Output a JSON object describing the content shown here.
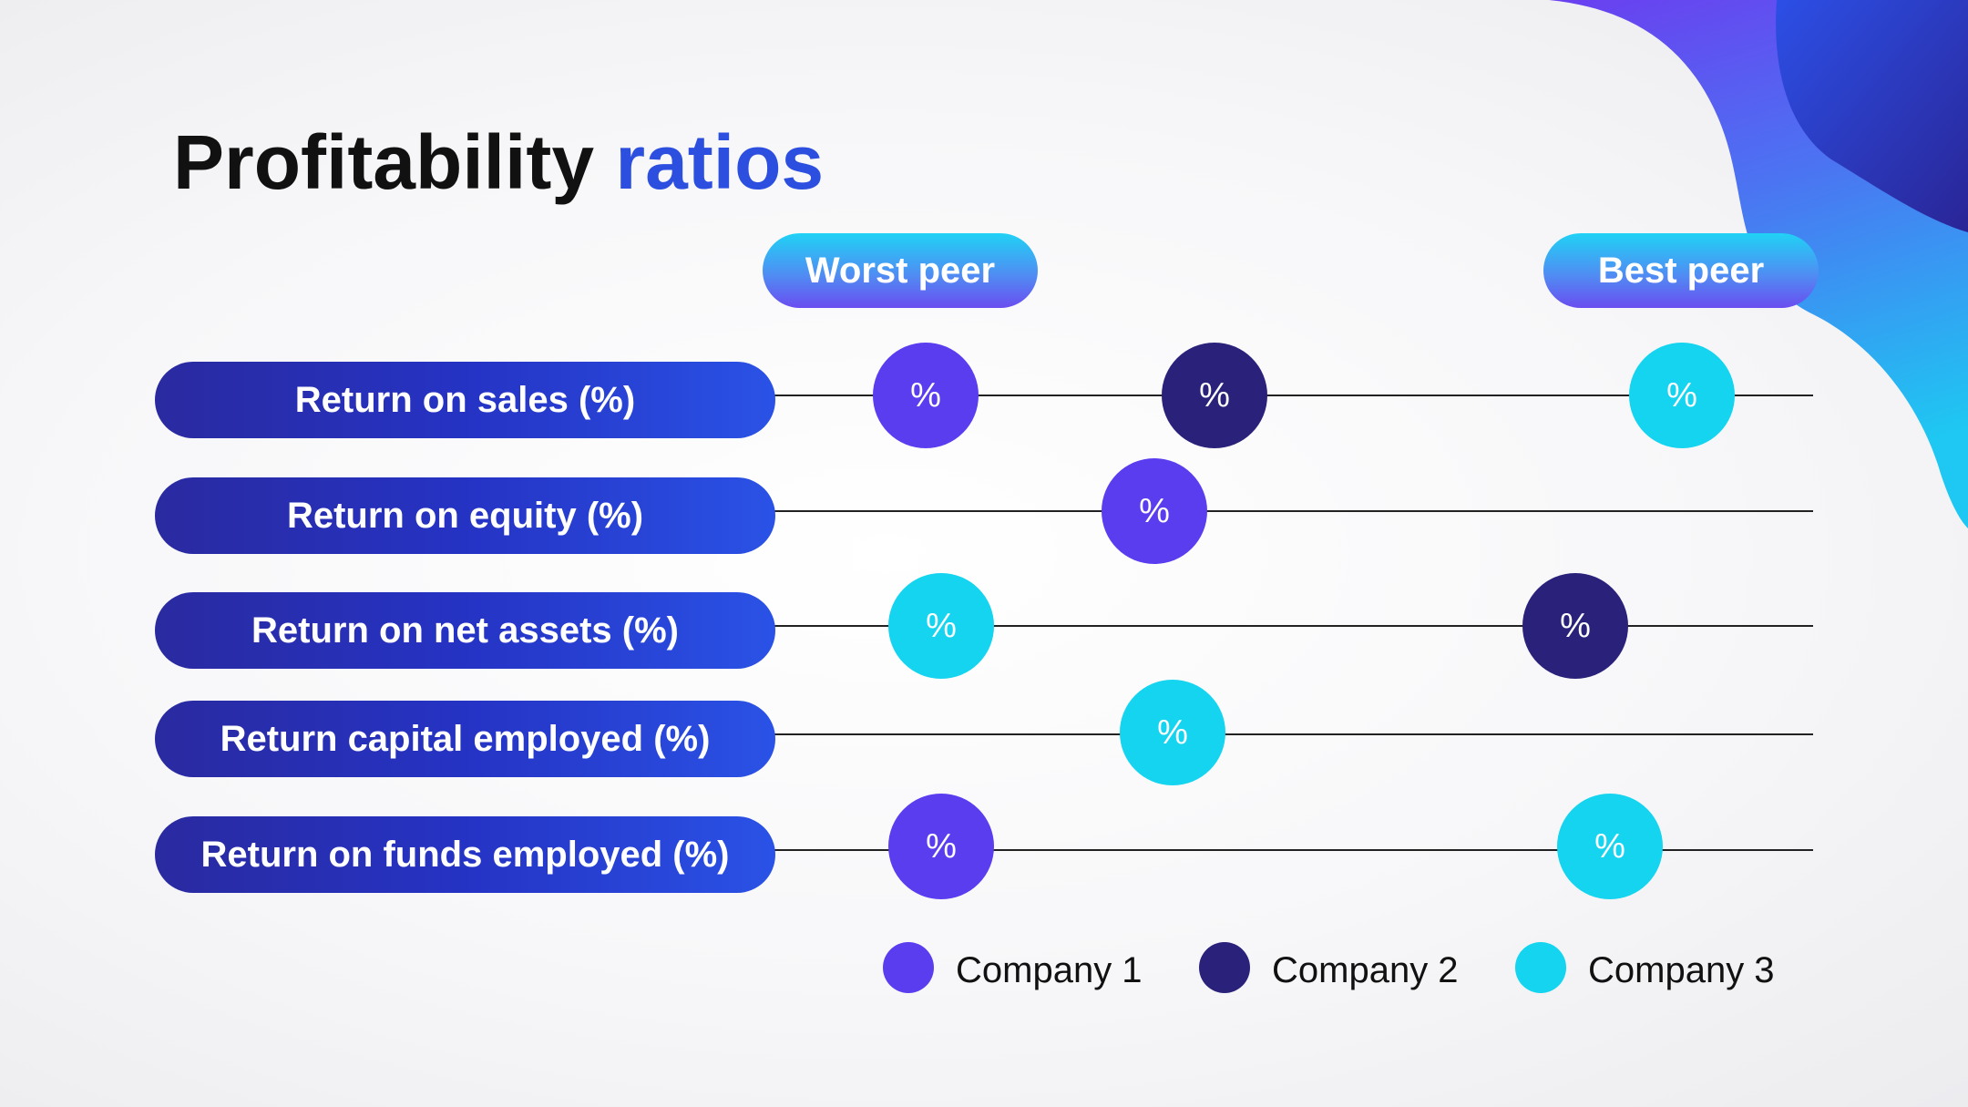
{
  "title": {
    "main": "Profitability",
    "accent": "ratios"
  },
  "scale": {
    "worst_label": "Worst peer",
    "best_label": "Best peer"
  },
  "metrics": [
    {
      "label": "Return on sales (%)",
      "markers": [
        {
          "company": "Company 1",
          "text": "%"
        },
        {
          "company": "Company 2",
          "text": "%"
        },
        {
          "company": "Company 3",
          "text": "%"
        }
      ]
    },
    {
      "label": "Return on equity (%)",
      "markers": [
        {
          "company": "Company 1",
          "text": "%"
        }
      ]
    },
    {
      "label": "Return on net assets (%)",
      "markers": [
        {
          "company": "Company 3",
          "text": "%"
        },
        {
          "company": "Company 2",
          "text": "%"
        }
      ]
    },
    {
      "label": "Return capital employed (%)",
      "markers": [
        {
          "company": "Company 3",
          "text": "%"
        }
      ]
    },
    {
      "label": "Return on funds employed (%)",
      "markers": [
        {
          "company": "Company 1",
          "text": "%"
        },
        {
          "company": "Company 3",
          "text": "%"
        }
      ]
    }
  ],
  "legend": [
    {
      "label": "Company 1",
      "color": "#5b3df0"
    },
    {
      "label": "Company 2",
      "color": "#2a227a"
    },
    {
      "label": "Company 3",
      "color": "#14d4f0"
    }
  ],
  "colors": {
    "accent": "#2d4fe0",
    "label_fill": "#2533c4",
    "peer_fill": "#20d2f5"
  }
}
